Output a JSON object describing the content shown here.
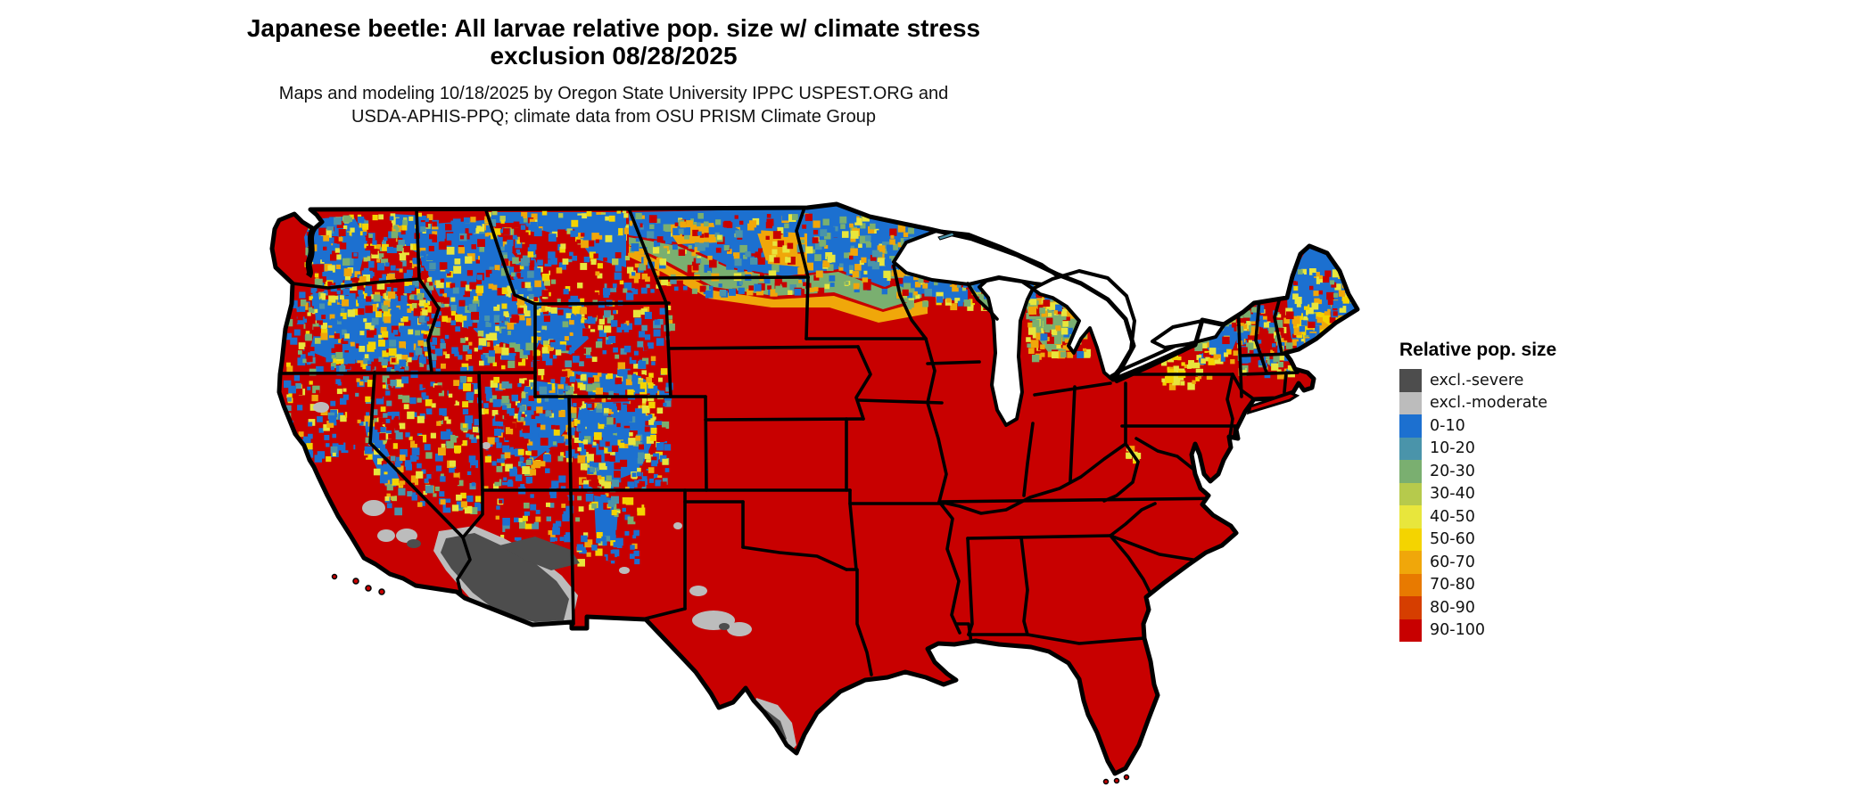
{
  "title": {
    "line1": "Japanese beetle: All larvae relative pop. size w/ climate stress",
    "line2": "exclusion 08/28/2025"
  },
  "subtitle": {
    "line1": "Maps and modeling 10/18/2025 by Oregon State University IPPC USPEST.ORG and",
    "line2": "USDA-APHIS-PPQ; climate data from OSU PRISM Climate Group"
  },
  "legend": {
    "title": "Relative pop. size",
    "entries": [
      {
        "label": "excl.-severe",
        "key": "exclSevere"
      },
      {
        "label": "excl.-moderate",
        "key": "exclModerate"
      },
      {
        "label": "0-10",
        "key": "c0"
      },
      {
        "label": "10-20",
        "key": "c10"
      },
      {
        "label": "20-30",
        "key": "c20"
      },
      {
        "label": "30-40",
        "key": "c30"
      },
      {
        "label": "40-50",
        "key": "c40"
      },
      {
        "label": "50-60",
        "key": "c50"
      },
      {
        "label": "60-70",
        "key": "c60"
      },
      {
        "label": "70-80",
        "key": "c70"
      },
      {
        "label": "80-90",
        "key": "c80"
      },
      {
        "label": "90-100",
        "key": "c90"
      }
    ]
  },
  "colors": {
    "exclSevere": "#4D4D4D",
    "exclModerate": "#BCBCBC",
    "c0": "#1C70D0",
    "c10": "#4A94AA",
    "c20": "#7AAF70",
    "c30": "#B6CA4C",
    "c40": "#E8E63C",
    "c50": "#F4D400",
    "c60": "#F0A70A",
    "c70": "#E87A00",
    "c80": "#D63E00",
    "c90": "#C80000",
    "border": "#000000",
    "water": "#FFFFFF"
  },
  "map": {
    "region": "Contiguous United States",
    "base_class": "90-100",
    "patterns": [
      {
        "area": "Most of the eastern, central and southern U.S.",
        "classes": [
          "90-100"
        ]
      },
      {
        "area": "Northern border band (N Montana, N North Dakota, N Minnesota)",
        "classes": [
          "0-10",
          "10-20",
          "20-30",
          "60-70",
          "50-60"
        ]
      },
      {
        "area": "Pacific Northwest and northern Rockies (WA, OR, ID, W MT, WY, UT, CO mountains)",
        "classes": [
          "0-10",
          "mosaic 10-80 fringes",
          "90-100"
        ]
      },
      {
        "area": "Great Lakes north shores (N Wisconsin, Michigan UP, N lower Michigan)",
        "classes": [
          "0-10",
          "20-30",
          "40-50",
          "60-70"
        ]
      },
      {
        "area": "Northern New England (N Maine, VT/NH mountains, Adirondacks NY)",
        "classes": [
          "0-10",
          "transition mosaic"
        ]
      },
      {
        "area": "Desert Southwest (SW Arizona, SE California)",
        "classes": [
          "excl.-severe",
          "excl.-moderate"
        ]
      },
      {
        "area": "California Central Valley / Mojave spots",
        "classes": [
          "excl.-moderate"
        ]
      },
      {
        "area": "West and South Texas along Rio Grande",
        "classes": [
          "excl.-moderate",
          "excl.-severe"
        ]
      }
    ]
  }
}
